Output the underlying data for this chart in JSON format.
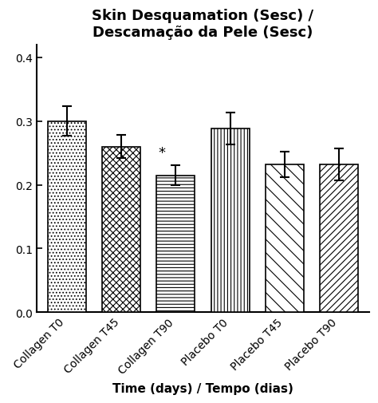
{
  "title": "Skin Desquamation (Sesc) /\nDescamação da Pele (Sesc)",
  "xlabel": "Time (days) / Tempo (dias)",
  "categories": [
    "Collagen T0",
    "Collagen T45",
    "Collagen T90",
    "Placebo T0",
    "Placebo T45",
    "Placebo T90"
  ],
  "values": [
    0.3,
    0.26,
    0.215,
    0.288,
    0.232,
    0.232
  ],
  "errors": [
    0.023,
    0.018,
    0.016,
    0.025,
    0.02,
    0.025
  ],
  "significant": [
    false,
    false,
    true,
    false,
    false,
    false
  ],
  "ylim": [
    0.0,
    0.42
  ],
  "yticks": [
    0.0,
    0.1,
    0.2,
    0.3,
    0.4
  ],
  "bar_width": 0.7,
  "background_color": "#ffffff",
  "bar_edge_color": "#000000",
  "title_fontsize": 13,
  "label_fontsize": 11,
  "tick_fontsize": 10,
  "hatch_patterns": [
    "....",
    "xxxx",
    "====",
    "||||",
    "\\\\\\\\",
    "////"
  ],
  "hatch_linewidth": 0.5
}
